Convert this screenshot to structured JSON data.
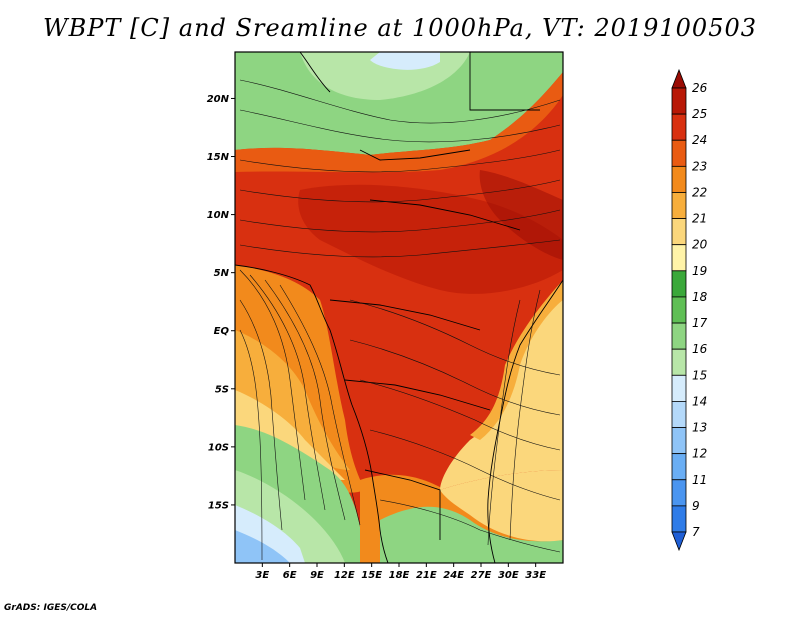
{
  "title": "WBPT [C] and Sreamline at 1000hPa, VT: 2019100503",
  "credit": "GrADS: IGES/COLA",
  "map": {
    "lat_labels": [
      "20N",
      "15N",
      "10N",
      "5N",
      "EQ",
      "5S",
      "10S",
      "15S"
    ],
    "lat_values": [
      20,
      15,
      10,
      5,
      0,
      -5,
      -10,
      -15
    ],
    "lon_labels": [
      "3E",
      "6E",
      "9E",
      "12E",
      "15E",
      "18E",
      "21E",
      "24E",
      "27E",
      "30E",
      "33E"
    ],
    "lon_values": [
      3,
      6,
      9,
      12,
      15,
      18,
      21,
      24,
      27,
      30,
      33
    ],
    "lon_range": [
      0,
      36
    ],
    "lat_range": [
      -20,
      24
    ]
  },
  "colorbar": {
    "levels": [
      "7",
      "9",
      "11",
      "12",
      "13",
      "14",
      "15",
      "16",
      "17",
      "18",
      "19",
      "20",
      "21",
      "22",
      "23",
      "24",
      "25",
      "26"
    ],
    "colors": [
      "#1f5fd6",
      "#2f7ce8",
      "#4a95f0",
      "#6aaef4",
      "#8fc4f7",
      "#b4d9fa",
      "#d6ecfc",
      "#b8e6a8",
      "#8ed582",
      "#5fbf55",
      "#3aa83a",
      "#fff3a8",
      "#fbd77c",
      "#f7ae3c",
      "#f28a1c",
      "#e95b12",
      "#d83010",
      "#b81806",
      "#9a0c04"
    ]
  }
}
